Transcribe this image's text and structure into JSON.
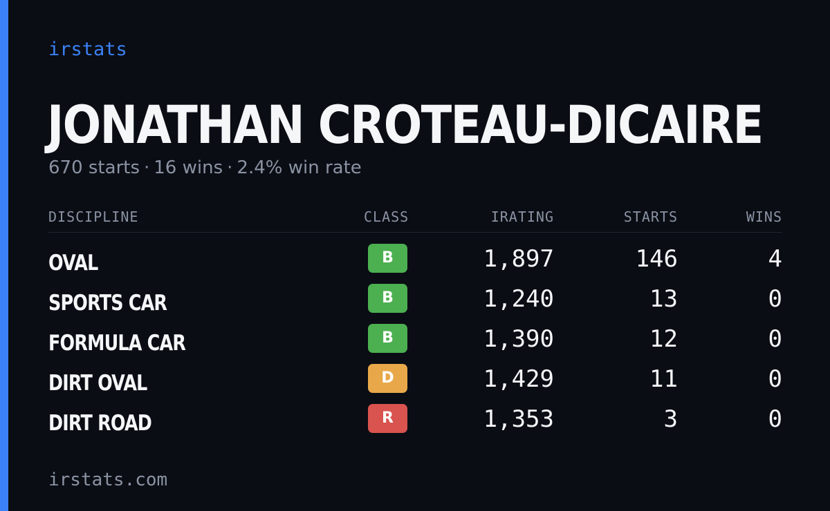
{
  "brand": "irstats",
  "driver": {
    "name": "JONATHAN CROTEAU-DICAIRE",
    "starts": "670 starts",
    "wins": "16 wins",
    "win_rate": "2.4% win rate",
    "separator": "·"
  },
  "table": {
    "headers": {
      "discipline": "DISCIPLINE",
      "class": "CLASS",
      "irating": "IRATING",
      "starts": "STARTS",
      "wins": "WINS"
    },
    "rows": [
      {
        "discipline": "OVAL",
        "class": "B",
        "class_color": "#4caf50",
        "irating": "1,897",
        "starts": "146",
        "wins": "4"
      },
      {
        "discipline": "SPORTS CAR",
        "class": "B",
        "class_color": "#4caf50",
        "irating": "1,240",
        "starts": "13",
        "wins": "0"
      },
      {
        "discipline": "FORMULA CAR",
        "class": "B",
        "class_color": "#4caf50",
        "irating": "1,390",
        "starts": "12",
        "wins": "0"
      },
      {
        "discipline": "DIRT OVAL",
        "class": "D",
        "class_color": "#e8a84a",
        "irating": "1,429",
        "starts": "11",
        "wins": "0"
      },
      {
        "discipline": "DIRT ROAD",
        "class": "R",
        "class_color": "#d9534f",
        "irating": "1,353",
        "starts": "3",
        "wins": "0"
      }
    ]
  },
  "footer": "irstats.com",
  "colors": {
    "accent": "#3b82f6",
    "background": "#0a0d14",
    "muted": "#8b93a3"
  }
}
